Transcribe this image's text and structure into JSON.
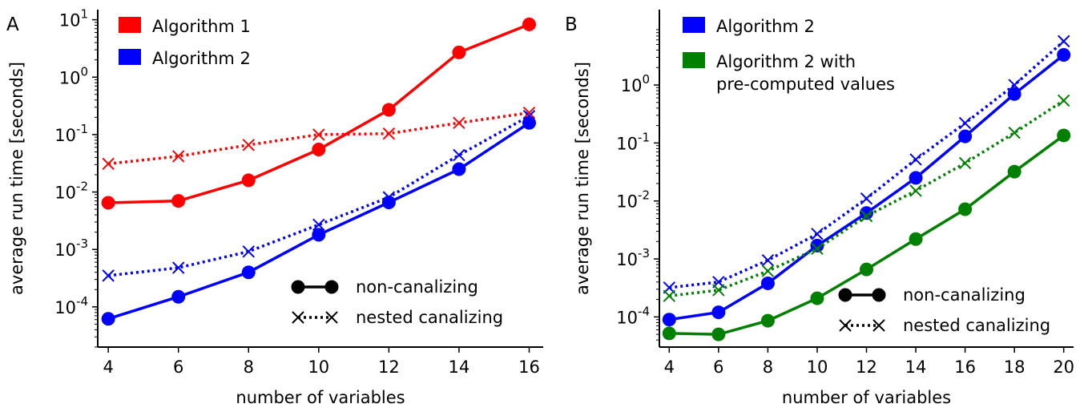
{
  "chart_data": [
    {
      "panel_label": "A",
      "type": "line",
      "xlabel": "number of variables",
      "ylabel": "average run time [seconds]",
      "x_ticks": [
        4,
        6,
        8,
        10,
        12,
        14,
        16
      ],
      "y_scale": "log",
      "y_ticks": [
        {
          "base": "10",
          "exp": "-4",
          "value": 0.0001
        },
        {
          "base": "10",
          "exp": "-3",
          "value": 0.001
        },
        {
          "base": "10",
          "exp": "-2",
          "value": 0.01
        },
        {
          "base": "10",
          "exp": "-1",
          "value": 0.1
        },
        {
          "base": "10",
          "exp": "0",
          "value": 1
        },
        {
          "base": "10",
          "exp": "1",
          "value": 10
        }
      ],
      "xlim": [
        3.7,
        16.4
      ],
      "ylim": [
        2e-05,
        15
      ],
      "grid": false,
      "x": [
        4,
        6,
        8,
        10,
        12,
        14,
        16
      ],
      "series": [
        {
          "name": "Algorithm 1",
          "style": "non-canalizing",
          "color": "#ff0000",
          "values": [
            0.0065,
            0.007,
            0.016,
            0.055,
            0.27,
            2.7,
            8.3
          ]
        },
        {
          "name": "Algorithm 1",
          "style": "nested canalizing",
          "color": "#ff0000",
          "values": [
            0.031,
            0.042,
            0.066,
            0.1,
            0.104,
            0.16,
            0.24
          ]
        },
        {
          "name": "Algorithm 2",
          "style": "non-canalizing",
          "color": "#0000ff",
          "values": [
            6.2e-05,
            0.00015,
            0.0004,
            0.0018,
            0.0066,
            0.025,
            0.16
          ]
        },
        {
          "name": "Algorithm 2",
          "style": "nested canalizing",
          "color": "#0000ff",
          "values": [
            0.00035,
            0.00048,
            0.00092,
            0.0027,
            0.0081,
            0.044,
            0.21
          ]
        }
      ],
      "color_legend": [
        {
          "label": "Algorithm 1",
          "color": "#ff0000"
        },
        {
          "label": "Algorithm 2",
          "color": "#0000ff"
        }
      ],
      "style_legend": [
        {
          "label": "non-canalizing",
          "marker": "circle",
          "line": "solid"
        },
        {
          "label": "nested canalizing",
          "marker": "x",
          "line": "dotted"
        }
      ]
    },
    {
      "panel_label": "B",
      "type": "line",
      "xlabel": "number of variables",
      "ylabel": "average run time [seconds]",
      "x_ticks": [
        4,
        6,
        8,
        10,
        12,
        14,
        16,
        18,
        20
      ],
      "y_scale": "log",
      "y_ticks": [
        {
          "base": "10",
          "exp": "-4",
          "value": 0.0001
        },
        {
          "base": "10",
          "exp": "-3",
          "value": 0.001
        },
        {
          "base": "10",
          "exp": "-2",
          "value": 0.01
        },
        {
          "base": "10",
          "exp": "-1",
          "value": 0.1
        },
        {
          "base": "10",
          "exp": "0",
          "value": 1
        }
      ],
      "xlim": [
        3.6,
        20.4
      ],
      "ylim": [
        3e-05,
        20
      ],
      "grid": false,
      "x": [
        4,
        6,
        8,
        10,
        12,
        14,
        16,
        18,
        20
      ],
      "series": [
        {
          "name": "Algorithm 2",
          "style": "non-canalizing",
          "color": "#0000ff",
          "values": [
            9e-05,
            0.00012,
            0.00038,
            0.0017,
            0.0062,
            0.025,
            0.13,
            0.7,
            3.3
          ]
        },
        {
          "name": "Algorithm 2",
          "style": "nested canalizing",
          "color": "#0000ff",
          "values": [
            0.00032,
            0.0004,
            0.00095,
            0.0027,
            0.011,
            0.052,
            0.22,
            1.0,
            5.7
          ]
        },
        {
          "name": "Algorithm 2 with pre-computed values",
          "style": "non-canalizing",
          "color": "#008000",
          "values": [
            5.2e-05,
            5e-05,
            8.6e-05,
            0.00021,
            0.00066,
            0.0022,
            0.0072,
            0.032,
            0.135
          ]
        },
        {
          "name": "Algorithm 2 with pre-computed values",
          "style": "nested canalizing",
          "color": "#008000",
          "values": [
            0.00023,
            0.00029,
            0.00062,
            0.0015,
            0.0055,
            0.015,
            0.045,
            0.15,
            0.54
          ]
        }
      ],
      "color_legend": [
        {
          "label": "Algorithm 2",
          "color": "#0000ff"
        },
        {
          "label": "Algorithm 2 with\npre-computed values",
          "color": "#008000"
        }
      ],
      "style_legend": [
        {
          "label": "non-canalizing",
          "marker": "circle",
          "line": "solid"
        },
        {
          "label": "nested canalizing",
          "marker": "x",
          "line": "dotted"
        }
      ]
    }
  ]
}
